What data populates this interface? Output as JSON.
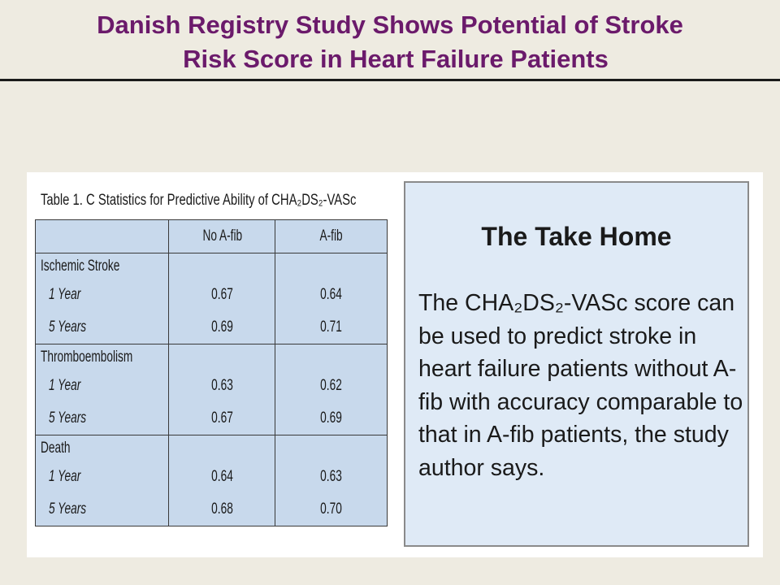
{
  "slide": {
    "title_line1": "Danish Registry Study Shows Potential of Stroke",
    "title_line2": "Risk Score in Heart Failure Patients"
  },
  "table": {
    "caption": "Table 1. C Statistics for Predictive Ability of CHA₂DS₂-VASc",
    "columns": [
      "",
      "No A-fib",
      "A-fib"
    ],
    "groups": [
      {
        "label": "Ischemic Stroke",
        "rows": [
          {
            "label": "1 Year",
            "no_afib": "0.67",
            "afib": "0.64"
          },
          {
            "label": "5 Years",
            "no_afib": "0.69",
            "afib": "0.71"
          }
        ]
      },
      {
        "label": "Thromboembolism",
        "rows": [
          {
            "label": "1 Year",
            "no_afib": "0.63",
            "afib": "0.62"
          },
          {
            "label": "5 Years",
            "no_afib": "0.67",
            "afib": "0.69"
          }
        ]
      },
      {
        "label": "Death",
        "rows": [
          {
            "label": "1 Year",
            "no_afib": "0.64",
            "afib": "0.63"
          },
          {
            "label": "5 Years",
            "no_afib": "0.68",
            "afib": "0.70"
          }
        ]
      }
    ]
  },
  "take_home": {
    "title": "The Take Home",
    "body": "The CHA₂DS₂-VASc score can be used to predict stroke in heart failure patients without A-fib with accuracy comparable to that in A-fib patients, the study author says."
  }
}
